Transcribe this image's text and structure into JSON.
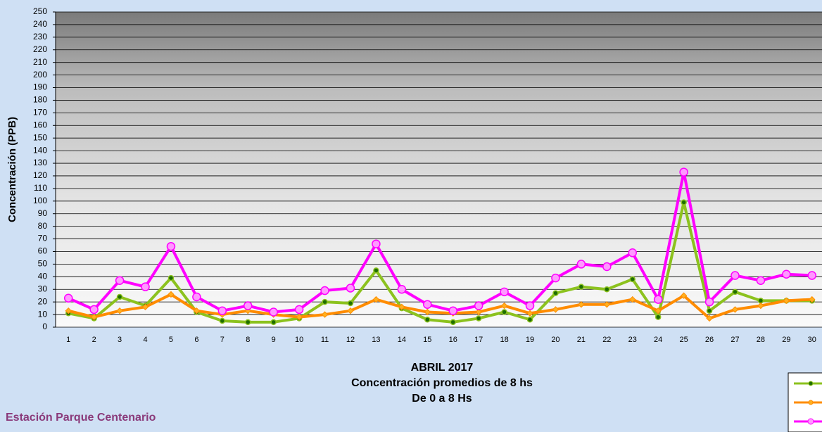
{
  "chart_data": {
    "type": "line",
    "y_label": "Concentración  (PPB)",
    "title_lines": [
      "ABRIL 2017",
      "Concentración promedios de 8 hs",
      "De 0 a 8 Hs"
    ],
    "annotation": "Estación Parque Centenario",
    "categories": [
      "1",
      "2",
      "3",
      "4",
      "5",
      "6",
      "7",
      "8",
      "9",
      "10",
      "11",
      "12",
      "13",
      "14",
      "15",
      "16",
      "17",
      "18",
      "19",
      "20",
      "21",
      "22",
      "23",
      "24",
      "25",
      "26",
      "27",
      "28",
      "29",
      "30"
    ],
    "series": [
      {
        "color": "#8cc21e",
        "marker_fill": "#1f6e00",
        "values": [
          11,
          7,
          24,
          17,
          39,
          12,
          5,
          4,
          4,
          7,
          20,
          19,
          45,
          15,
          6,
          4,
          7,
          12,
          6,
          27,
          32,
          30,
          38,
          8,
          99,
          13,
          28,
          21,
          21,
          21
        ]
      },
      {
        "color": "#ff8c00",
        "marker_fill": "#ffb020",
        "values": [
          13,
          8,
          13,
          16,
          26,
          13,
          10,
          13,
          10,
          8,
          10,
          13,
          22,
          16,
          12,
          11,
          12,
          17,
          11,
          14,
          18,
          18,
          22,
          13,
          25,
          7,
          14,
          17,
          21,
          22
        ]
      },
      {
        "color": "#ff00ff",
        "marker_fill": "#ff99ff",
        "values": [
          23,
          14,
          37,
          32,
          64,
          24,
          13,
          17,
          12,
          14,
          29,
          31,
          66,
          30,
          18,
          13,
          17,
          28,
          17,
          39,
          50,
          48,
          59,
          22,
          123,
          20,
          41,
          37,
          42,
          41
        ]
      }
    ],
    "ylim": [
      0,
      250
    ],
    "yticks": [
      0,
      10,
      20,
      30,
      40,
      50,
      60,
      70,
      80,
      90,
      100,
      110,
      120,
      130,
      140,
      150,
      160,
      170,
      180,
      190,
      200,
      210,
      220,
      230,
      240,
      250
    ],
    "grid": true
  }
}
